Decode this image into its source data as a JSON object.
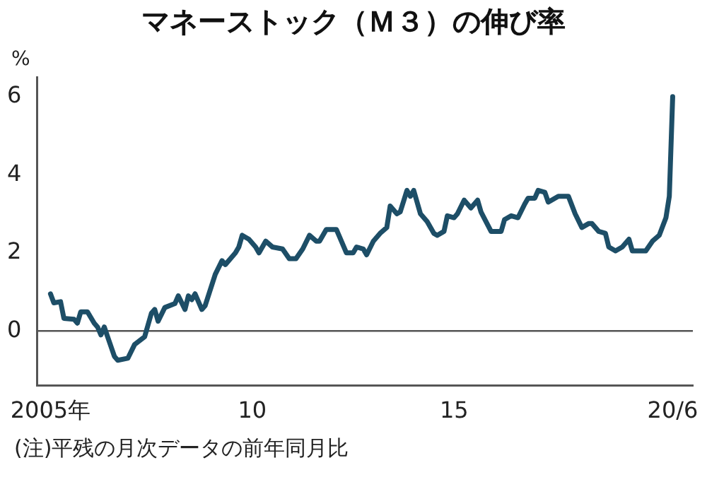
{
  "chart_data": {
    "type": "line",
    "title": "マネーストック（Ｍ３）の伸び率",
    "ylabel": "%",
    "annotations": [
      "(注)平残の月次データの前年同月比"
    ],
    "x": [
      "2005-01",
      "2005-02",
      "2005-04",
      "2005-05",
      "2005-08",
      "2005-09",
      "2005-10",
      "2005-12",
      "2006-02",
      "2006-03",
      "2006-04",
      "2006-05",
      "2006-06",
      "2006-08",
      "2006-09",
      "2006-12",
      "2007-02",
      "2007-05",
      "2007-07",
      "2007-08",
      "2007-09",
      "2007-11",
      "2008-02",
      "2008-03",
      "2008-05",
      "2008-06",
      "2008-07",
      "2008-08",
      "2008-10",
      "2008-11",
      "2009-02",
      "2009-04",
      "2009-05",
      "2009-08",
      "2009-09",
      "2009-10",
      "2009-12",
      "2010-02",
      "2010-03",
      "2010-05",
      "2010-07",
      "2010-10",
      "2010-12",
      "2011-02",
      "2011-04",
      "2011-06",
      "2011-08",
      "2011-09",
      "2011-11",
      "2012-02",
      "2012-03",
      "2012-05",
      "2012-07",
      "2012-08",
      "2012-10",
      "2012-11",
      "2013-01",
      "2013-03",
      "2013-05",
      "2013-06",
      "2013-08",
      "2013-09",
      "2013-11",
      "2013-12",
      "2014-01",
      "2014-03",
      "2014-05",
      "2014-07",
      "2014-08",
      "2014-10",
      "2014-11",
      "2015-01",
      "2015-02",
      "2015-04",
      "2015-06",
      "2015-08",
      "2015-09",
      "2015-12",
      "2016-03",
      "2016-04",
      "2016-06",
      "2016-08",
      "2016-10",
      "2016-11",
      "2017-01",
      "2017-02",
      "2017-04",
      "2017-05",
      "2017-06",
      "2017-08",
      "2017-11",
      "2018-01",
      "2018-03",
      "2018-05",
      "2018-06",
      "2018-08",
      "2018-10",
      "2018-11",
      "2019-01",
      "2019-03",
      "2019-05",
      "2019-06",
      "2019-10",
      "2019-12",
      "2020-02",
      "2020-04",
      "2020-05",
      "2020-06"
    ],
    "series": [
      {
        "color": "#1d4e67",
        "values": [
          0.95,
          0.72,
          0.75,
          0.32,
          0.3,
          0.2,
          0.49,
          0.49,
          0.2,
          0.1,
          -0.1,
          0.1,
          -0.15,
          -0.65,
          -0.75,
          -0.7,
          -0.35,
          -0.15,
          0.45,
          0.55,
          0.25,
          0.6,
          0.7,
          0.9,
          0.55,
          0.9,
          0.8,
          0.95,
          0.55,
          0.65,
          1.45,
          1.8,
          1.7,
          2.0,
          2.15,
          2.45,
          2.35,
          2.15,
          2.0,
          2.3,
          2.15,
          2.1,
          1.85,
          1.85,
          2.1,
          2.45,
          2.3,
          2.3,
          2.6,
          2.6,
          2.4,
          2.0,
          2.0,
          2.15,
          2.1,
          1.95,
          2.3,
          2.5,
          2.65,
          3.2,
          3.0,
          3.05,
          3.6,
          3.45,
          3.6,
          3.0,
          2.8,
          2.5,
          2.45,
          2.55,
          2.95,
          2.9,
          3.0,
          3.35,
          3.15,
          3.35,
          3.05,
          2.55,
          2.55,
          2.85,
          2.95,
          2.9,
          3.25,
          3.4,
          3.4,
          3.6,
          3.55,
          3.3,
          3.35,
          3.45,
          3.45,
          3.0,
          2.65,
          2.75,
          2.75,
          2.55,
          2.5,
          2.15,
          2.05,
          2.15,
          2.35,
          2.05,
          2.05,
          2.3,
          2.45,
          2.9,
          3.45,
          6.0
        ]
      }
    ],
    "marker": "none",
    "xlim": [
      "2004-09",
      "2020-12"
    ],
    "xticks": [
      {
        "value": "2005-01",
        "label": "2005年"
      },
      {
        "value": "2010-01",
        "label": "10"
      },
      {
        "value": "2015-01",
        "label": "15"
      },
      {
        "value": "2020-06",
        "label": "20/6"
      }
    ],
    "ylim": [
      -1.4,
      6.5
    ],
    "yticks": [
      0,
      2,
      4,
      6
    ],
    "ref_lines": [
      {
        "axis": "y",
        "value": 0,
        "color": "#555555"
      }
    ]
  }
}
